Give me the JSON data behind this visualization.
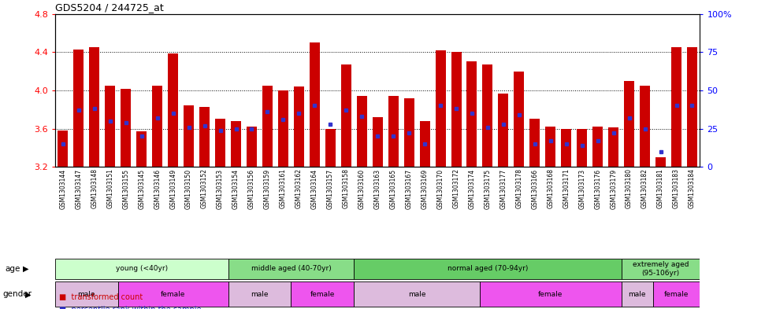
{
  "title": "GDS5204 / 244725_at",
  "samples": [
    "GSM1303144",
    "GSM1303147",
    "GSM1303148",
    "GSM1303151",
    "GSM1303155",
    "GSM1303145",
    "GSM1303146",
    "GSM1303149",
    "GSM1303150",
    "GSM1303152",
    "GSM1303153",
    "GSM1303154",
    "GSM1303156",
    "GSM1303159",
    "GSM1303161",
    "GSM1303162",
    "GSM1303164",
    "GSM1303157",
    "GSM1303158",
    "GSM1303160",
    "GSM1303163",
    "GSM1303165",
    "GSM1303167",
    "GSM1303169",
    "GSM1303170",
    "GSM1303172",
    "GSM1303174",
    "GSM1303175",
    "GSM1303177",
    "GSM1303178",
    "GSM1303166",
    "GSM1303168",
    "GSM1303171",
    "GSM1303173",
    "GSM1303176",
    "GSM1303179",
    "GSM1303180",
    "GSM1303182",
    "GSM1303181",
    "GSM1303183",
    "GSM1303184"
  ],
  "bar_values": [
    3.58,
    4.43,
    4.45,
    4.05,
    4.02,
    3.57,
    4.05,
    4.39,
    3.84,
    3.83,
    3.7,
    3.68,
    3.62,
    4.05,
    4.0,
    4.04,
    4.5,
    3.6,
    4.27,
    3.94,
    3.72,
    3.94,
    3.92,
    3.68,
    4.42,
    4.4,
    4.3,
    4.27,
    3.97,
    4.2,
    3.7,
    3.62,
    3.6,
    3.6,
    3.62,
    3.61,
    4.1,
    4.05,
    3.3,
    4.45,
    4.45
  ],
  "percentile_values": [
    15,
    37,
    38,
    30,
    29,
    20,
    32,
    35,
    26,
    27,
    24,
    25,
    25,
    36,
    31,
    35,
    40,
    28,
    37,
    33,
    20,
    20,
    22,
    15,
    40,
    38,
    35,
    26,
    28,
    34,
    15,
    17,
    15,
    14,
    17,
    22,
    32,
    25,
    10,
    40,
    40
  ],
  "ylim_left": [
    3.2,
    4.8
  ],
  "ylim_right": [
    0,
    100
  ],
  "yticks_left": [
    3.2,
    3.6,
    4.0,
    4.4,
    4.8
  ],
  "yticks_right": [
    0,
    25,
    50,
    75,
    100
  ],
  "bar_color": "#cc0000",
  "dot_color": "#3333cc",
  "age_groups": [
    {
      "label": "young (<40yr)",
      "start": 0,
      "end": 11,
      "color": "#ccffcc"
    },
    {
      "label": "middle aged (40-70yr)",
      "start": 11,
      "end": 19,
      "color": "#88dd88"
    },
    {
      "label": "normal aged (70-94yr)",
      "start": 19,
      "end": 36,
      "color": "#66cc66"
    },
    {
      "label": "extremely aged\n(95-106yr)",
      "start": 36,
      "end": 41,
      "color": "#88dd88"
    }
  ],
  "gender_groups": [
    {
      "label": "male",
      "start": 0,
      "end": 4,
      "color": "#ddbbdd"
    },
    {
      "label": "female",
      "start": 4,
      "end": 11,
      "color": "#ee55ee"
    },
    {
      "label": "male",
      "start": 11,
      "end": 15,
      "color": "#ddbbdd"
    },
    {
      "label": "female",
      "start": 15,
      "end": 19,
      "color": "#ee55ee"
    },
    {
      "label": "male",
      "start": 19,
      "end": 27,
      "color": "#ddbbdd"
    },
    {
      "label": "female",
      "start": 27,
      "end": 36,
      "color": "#ee55ee"
    },
    {
      "label": "male",
      "start": 36,
      "end": 38,
      "color": "#ddbbdd"
    },
    {
      "label": "female",
      "start": 38,
      "end": 41,
      "color": "#ee55ee"
    }
  ]
}
